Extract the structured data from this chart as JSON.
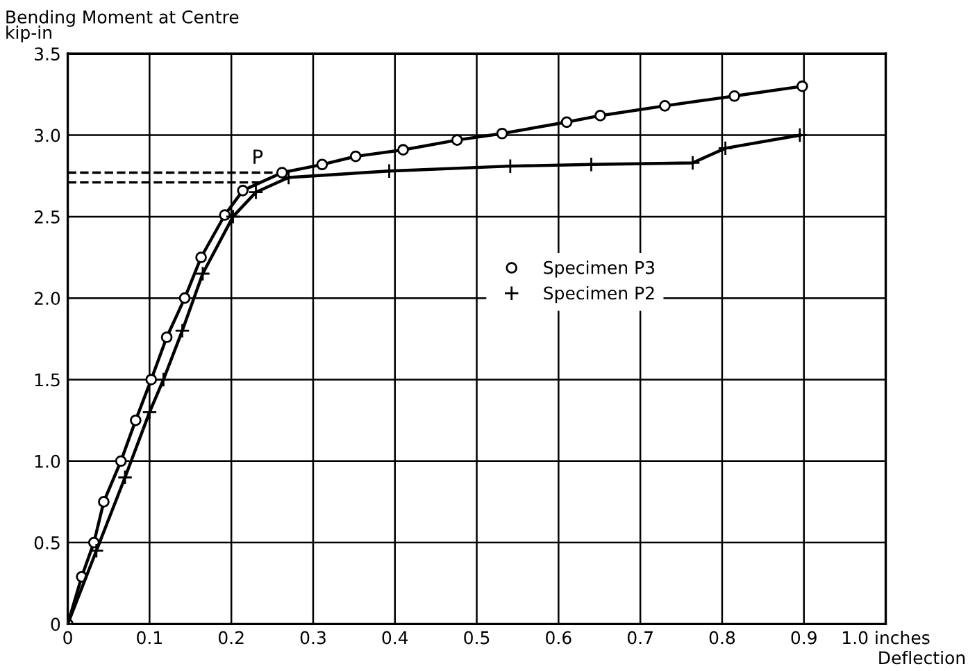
{
  "chart_data": {
    "type": "line",
    "ylabel": "Bending Moment at Centre\nkip-in",
    "xlabel": "Deflection",
    "xlim": [
      0,
      1.0
    ],
    "ylim": [
      0,
      3.5
    ],
    "xticks": [
      0,
      0.1,
      0.2,
      0.3,
      0.4,
      0.5,
      0.6,
      0.7,
      0.8,
      0.9,
      {
        "value": 1.0,
        "label": "1.0 inches"
      }
    ],
    "yticks": [
      0,
      0.5,
      {
        "value": 1,
        "label": "1.0"
      },
      1.5,
      {
        "value": 2,
        "label": "2.0"
      },
      2.5,
      {
        "value": 3,
        "label": "3.0"
      },
      3.5
    ],
    "grid": true,
    "legend": "center",
    "series": [
      {
        "name": "Specimen P3",
        "color": "#000000",
        "marker": "circle",
        "x": [
          0,
          0.017,
          0.032,
          0.044,
          0.065,
          0.083,
          0.102,
          0.121,
          0.143,
          0.163,
          0.192,
          0.214,
          0.262,
          0.311,
          0.352,
          0.41,
          0.476,
          0.531,
          0.61,
          0.651,
          0.73,
          0.815,
          0.898
        ],
        "values": [
          0,
          0.29,
          0.5,
          0.75,
          1.0,
          1.25,
          1.5,
          1.76,
          2.0,
          2.25,
          2.51,
          2.66,
          2.77,
          2.82,
          2.87,
          2.91,
          2.97,
          3.01,
          3.08,
          3.12,
          3.18,
          3.24,
          3.3
        ]
      },
      {
        "name": "Specimen P2",
        "color": "#000000",
        "marker": "cross",
        "x": [
          0,
          0.035,
          0.07,
          0.1,
          0.117,
          0.14,
          0.165,
          0.202,
          0.23,
          0.27,
          0.393,
          0.541,
          0.64,
          0.764,
          0.804,
          0.895
        ],
        "values": [
          0,
          0.45,
          0.9,
          1.3,
          1.5,
          1.8,
          2.15,
          2.5,
          2.65,
          2.74,
          2.78,
          2.81,
          2.82,
          2.83,
          2.92,
          3.0
        ]
      }
    ],
    "ref_lines": [
      {
        "axis": "y",
        "value": 2.77,
        "line_style": "dashed",
        "label": "P"
      },
      {
        "axis": "y",
        "value": 2.71,
        "line_style": "dashed"
      }
    ]
  }
}
